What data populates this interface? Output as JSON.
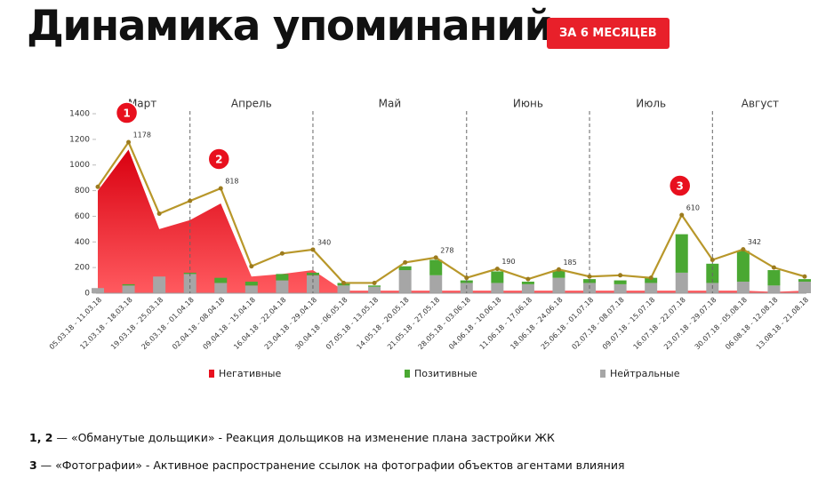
{
  "header": {
    "title": "Динамика упоминаний",
    "badge": "ЗА 6 МЕСЯЦЕВ"
  },
  "chart_data": {
    "type": "area-stacked-bar",
    "categories": [
      "05.03.18 - 11.03.18",
      "12.03.18 - 18.03.18",
      "19.03.18 - 25.03.18",
      "26.03.18 - 01.04.18",
      "02.04.18 - 08.04.18",
      "09.04.18 - 15.04.18",
      "16.04.18 - 22.04.18",
      "23.04.18 - 29.04.18",
      "30.04.18 - 06.05.18",
      "07.05.18 - 13.05.18",
      "14.05.18 - 20.05.18",
      "21.05.18 - 27.05.18",
      "28.05.18 - 03.06.18",
      "04.06.18 - 10.06.18",
      "11.06.18 - 17.06.18",
      "18.06.18 - 24.06.18",
      "25.06.18 - 01.07.18",
      "02.07.18 - 08.07.18",
      "09.07.18 - 15.07.18",
      "16.07.18 - 22.07.18",
      "23.07.18 - 29.07.18",
      "30.07.18 - 05.08.18",
      "06.08.18 - 12.08.18",
      "13.08.18 - 21.08.18"
    ],
    "series": [
      {
        "name": "Негативные",
        "color": "#e8101e",
        "values": [
          800,
          1120,
          500,
          570,
          700,
          130,
          150,
          180,
          20,
          20,
          20,
          20,
          20,
          20,
          20,
          20,
          20,
          20,
          20,
          20,
          20,
          20,
          10,
          20
        ]
      },
      {
        "name": "Позитивные",
        "color": "#4aa832",
        "values": [
          0,
          10,
          0,
          10,
          40,
          30,
          50,
          20,
          20,
          10,
          30,
          120,
          20,
          90,
          20,
          60,
          30,
          30,
          40,
          300,
          150,
          240,
          120,
          20
        ]
      },
      {
        "name": "Нейтральные",
        "color": "#a6a6a6",
        "values": [
          40,
          60,
          130,
          150,
          80,
          60,
          100,
          140,
          60,
          50,
          180,
          140,
          80,
          80,
          70,
          120,
          80,
          70,
          80,
          160,
          80,
          90,
          60,
          90
        ]
      }
    ],
    "total": {
      "color": "#b8972a",
      "values": [
        830,
        1178,
        620,
        720,
        818,
        210,
        310,
        340,
        80,
        80,
        240,
        278,
        120,
        190,
        110,
        185,
        130,
        140,
        120,
        610,
        260,
        342,
        200,
        130
      ]
    },
    "labeled_indices": [
      1,
      4,
      7,
      11,
      13,
      15,
      19,
      21
    ],
    "months": [
      "Март",
      "Апрель",
      "Май",
      "Июнь",
      "Июль",
      "Август"
    ],
    "month_breaks": [
      3,
      7,
      12,
      16,
      20
    ],
    "callouts": [
      {
        "label": "1",
        "index": 1
      },
      {
        "label": "2",
        "index": 4
      },
      {
        "label": "3",
        "index": 19
      }
    ],
    "ylim": [
      0,
      1400
    ],
    "yticks": [
      0,
      200,
      400,
      600,
      800,
      1000,
      1200,
      1400
    ]
  },
  "notes": [
    {
      "ref": "1, 2",
      "text": " — «Обманутые дольщики» - Реакция дольщиков на изменение плана застройки ЖК"
    },
    {
      "ref": "3",
      "text": " — «Фотографии» - Активное распространение ссылок на фотографии объектов агентами влияния"
    }
  ]
}
